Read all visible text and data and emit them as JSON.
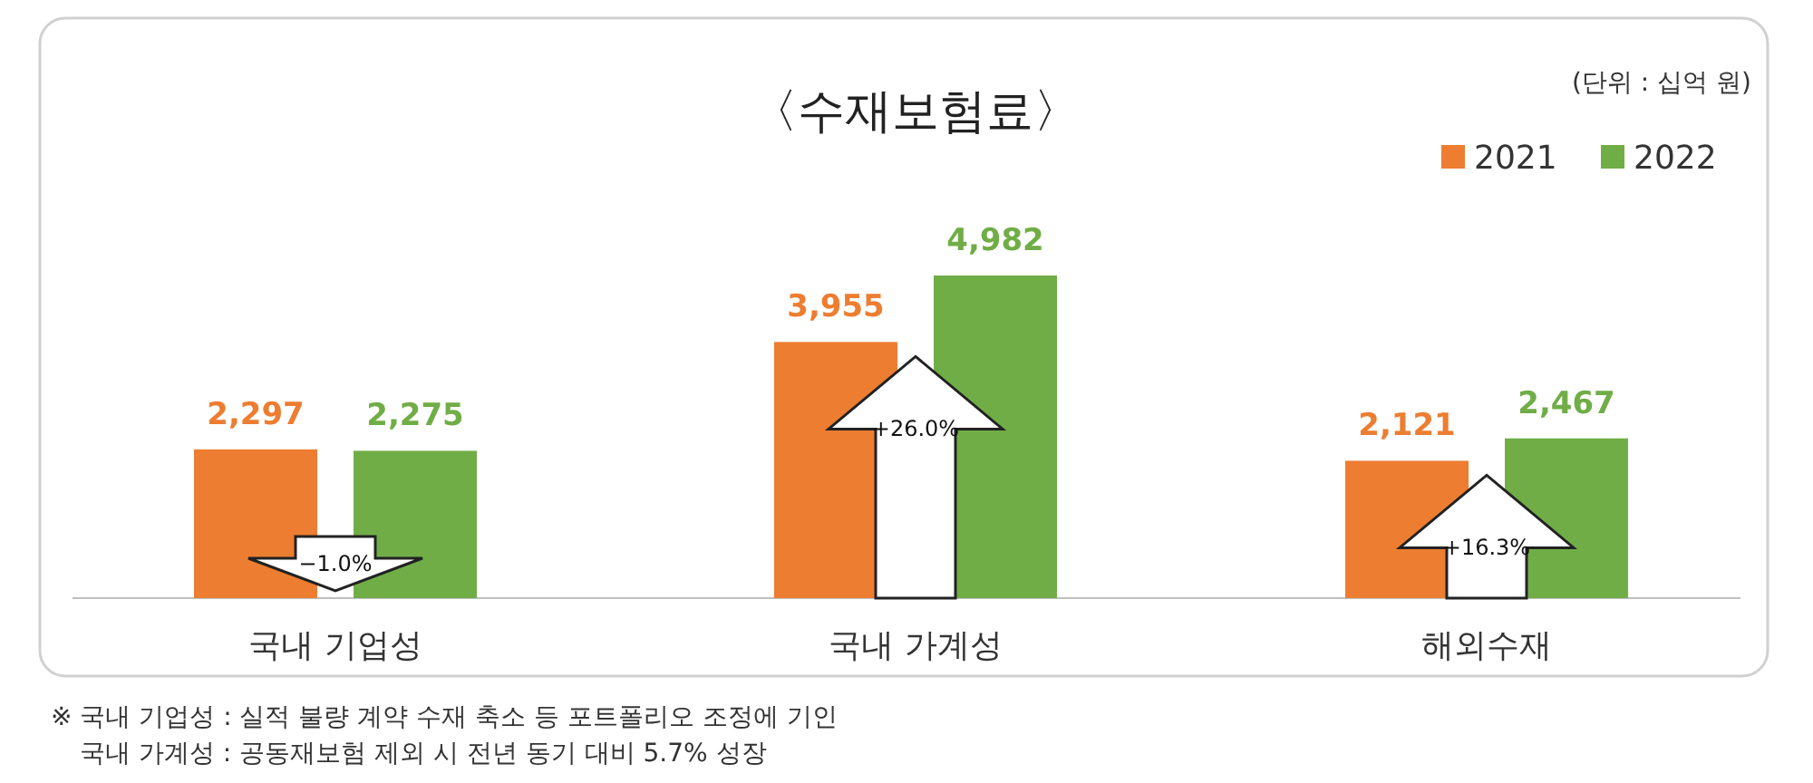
{
  "chart_data": {
    "type": "bar",
    "title": "〈수재보험료〉",
    "categories": [
      "국내 기업성",
      "국내 가계성",
      "해외수재"
    ],
    "series": [
      {
        "name": "2021",
        "color": "#ed7d31",
        "values": [
          2297,
          3955,
          2121
        ],
        "value_labels": [
          "2,297",
          "3,955",
          "2,121"
        ]
      },
      {
        "name": "2022",
        "color": "#70ad47",
        "values": [
          2275,
          4982,
          2467
        ],
        "value_labels": [
          "2,275",
          "4,982",
          "2,467"
        ]
      }
    ],
    "legend": "top right",
    "annotations": [
      "−1.0%",
      "+26.0%",
      "+16.3%",
      "(단위 : 십억 원)",
      "※ 국내 기업성 : 실적 불량 계약 수재 축소 등 포트폴리오 조정에 기인",
      "국내 가계성 : 공동재보험 제외 시 전년 동기 대비 5.7% 성장"
    ]
  }
}
